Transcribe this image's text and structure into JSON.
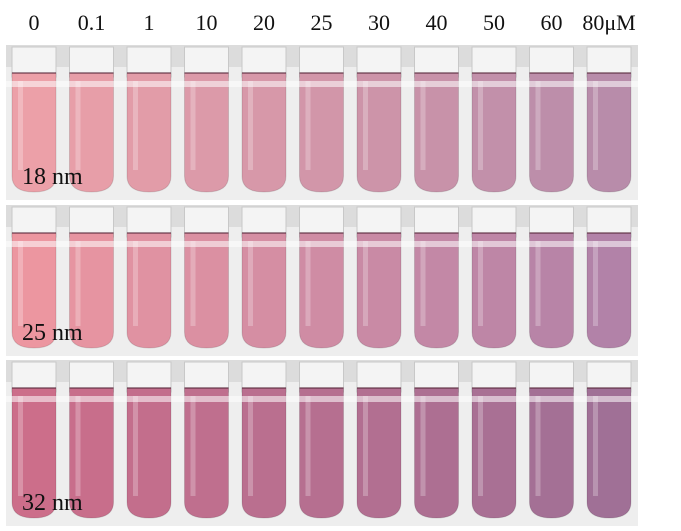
{
  "concentrations": [
    "0",
    "0.1",
    "1",
    "10",
    "20",
    "25",
    "30",
    "40",
    "50",
    "60",
    "80μM"
  ],
  "rows": [
    "18 nm",
    "25 nm",
    "32 nm"
  ]
}
